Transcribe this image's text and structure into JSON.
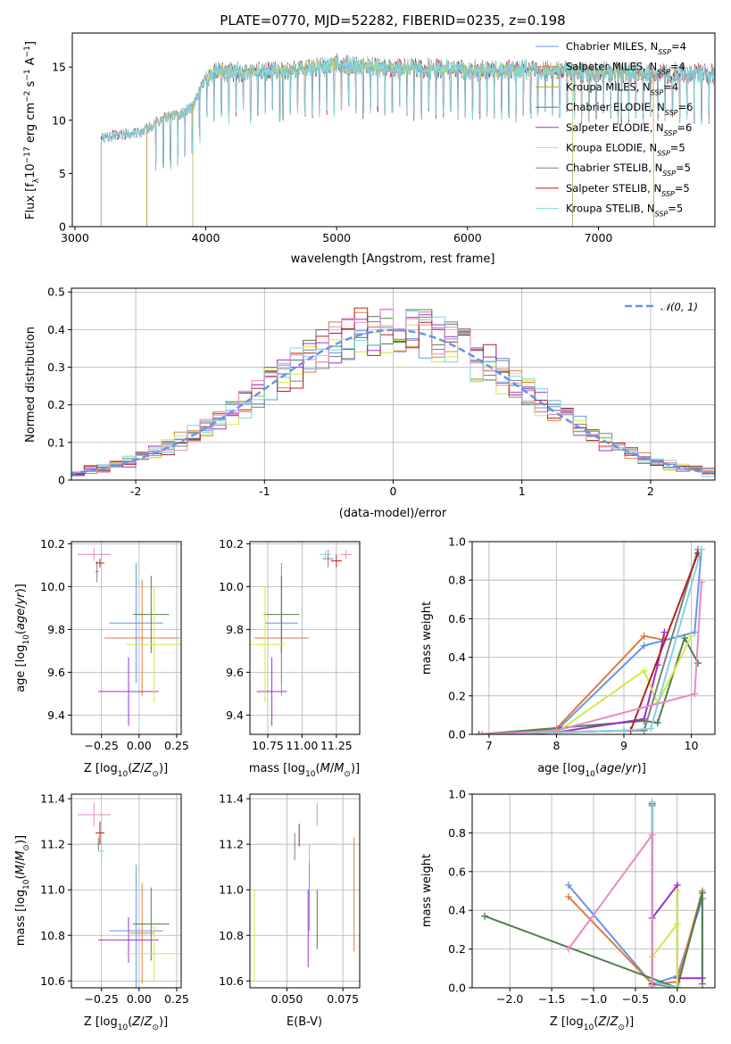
{
  "chart_data": [
    {
      "id": "spectrum",
      "type": "line",
      "title": "PLATE=0770, MJD=52282, FIBERID=0235, z=0.198",
      "xlabel": "wavelength [Angstrom, rest frame]",
      "ylabel": "Flux [f_λ 10^-17 erg cm^-2 s^-1 A^-1]",
      "xlim": [
        2980,
        7890
      ],
      "ylim": [
        0,
        18.2
      ],
      "xticks": [
        3000,
        4000,
        5000,
        6000,
        7000
      ],
      "yticks": [
        0,
        5,
        10,
        15
      ],
      "grid": false,
      "legend_position": "top-right",
      "continuum_x": [
        3200,
        3300,
        3400,
        3500,
        3600,
        3700,
        3800,
        3900,
        4000,
        4100,
        4300,
        4600,
        5000,
        5500,
        6000,
        6500,
        7000,
        7400,
        7800
      ],
      "continuum_y": [
        8.3,
        8.6,
        8.7,
        8.8,
        9.6,
        10.3,
        10.5,
        11.3,
        14.0,
        14.6,
        14.5,
        14.6,
        15.2,
        14.9,
        14.7,
        14.7,
        14.5,
        14.4,
        14.4
      ],
      "series": [
        {
          "name": "Chabrier MILES, N_SSP=4",
          "color": "#6495ed",
          "x_start": 3550,
          "x_end": 7420
        },
        {
          "name": "Salpeter MILES, N_SSP=4",
          "color": "#e07b39",
          "x_start": 3550,
          "x_end": 7420
        },
        {
          "name": "Kroupa MILES, N_SSP=4",
          "color": "#c9a227",
          "x_start": 3550,
          "x_end": 7420
        },
        {
          "name": "Chabrier ELODIE, N_SSP=6",
          "color": "#4f7f4f",
          "x_start": 3900,
          "x_end": 6800
        },
        {
          "name": "Salpeter ELODIE, N_SSP=6",
          "color": "#9932cc",
          "x_start": 3900,
          "x_end": 6800
        },
        {
          "name": "Kroupa ELODIE, N_SSP=5",
          "color": "#d4e84a",
          "x_start": 3900,
          "x_end": 6800
        },
        {
          "name": "Chabrier STELIB, N_SSP=5",
          "color": "#808080",
          "x_start": 3200,
          "x_end": 7890
        },
        {
          "name": "Salpeter STELIB, N_SSP=5",
          "color": "#b22222",
          "x_start": 3200,
          "x_end": 7890
        },
        {
          "name": "Kroupa STELIB, N_SSP=5",
          "color": "#7fd4e0",
          "x_start": 3200,
          "x_end": 7890
        }
      ]
    },
    {
      "id": "residuals",
      "type": "histogram",
      "xlabel": "(data-model)/error",
      "ylabel": "Normed distribution",
      "xlim": [
        -2.5,
        2.5
      ],
      "ylim": [
        0,
        0.51
      ],
      "xticks": [
        -2,
        -1,
        0,
        1,
        2
      ],
      "yticks": [
        0.0,
        0.1,
        0.2,
        0.3,
        0.4,
        0.5
      ],
      "grid": true,
      "legend_position": "top-right",
      "legend": "N(0,1)",
      "gaussian": {
        "mean": 0,
        "sigma": 1,
        "color": "#6495ed"
      },
      "bin_width": 0.1,
      "series_colors": [
        "#6495ed",
        "#e07b39",
        "#4f7f4f",
        "#9932cc",
        "#d4e84a",
        "#808080",
        "#b22222",
        "#7fd4e0",
        "#e78ac3"
      ]
    },
    {
      "id": "age-vs-z",
      "type": "errorbar",
      "xlabel": "Z [log10(Z/Z⊙)]",
      "ylabel": "age [log10(age/yr)]",
      "xlim": [
        -0.45,
        0.28
      ],
      "ylim": [
        9.31,
        10.21
      ],
      "xticks": [
        -0.25,
        0.0,
        0.25
      ],
      "xticklabels": [
        "−0.25",
        "0.00",
        "0.25"
      ],
      "yticks": [
        9.4,
        9.6,
        9.8,
        10.0,
        10.2
      ],
      "yticklabels": [
        "9.4",
        "9.6",
        "9.8",
        "10.0",
        "10.2"
      ],
      "grid": true,
      "points": [
        {
          "x": -0.02,
          "y": 9.83,
          "xerr": 0.18,
          "yerr": 0.28,
          "color": "#6495ed"
        },
        {
          "x": 0.02,
          "y": 9.76,
          "xerr": 0.25,
          "yerr": 0.27,
          "color": "#e07b39"
        },
        {
          "x": 0.08,
          "y": 9.87,
          "xerr": 0.12,
          "yerr": 0.18,
          "color": "#4f7f4f"
        },
        {
          "x": -0.07,
          "y": 9.51,
          "xerr": 0.2,
          "yerr": 0.16,
          "color": "#9932cc"
        },
        {
          "x": 0.1,
          "y": 9.73,
          "xerr": 0.19,
          "yerr": 0.27,
          "color": "#d4e84a"
        },
        {
          "x": -0.28,
          "y": 10.07,
          "xerr": 0.01,
          "yerr": 0.05,
          "color": "#808080"
        },
        {
          "x": -0.26,
          "y": 10.11,
          "xerr": 0.03,
          "yerr": 0.02,
          "color": "#b22222"
        },
        {
          "x": -0.25,
          "y": 10.15,
          "xerr": 0.02,
          "yerr": 0.02,
          "color": "#7fd4e0"
        },
        {
          "x": -0.3,
          "y": 10.15,
          "xerr": 0.11,
          "yerr": 0.03,
          "color": "#e78ac3"
        }
      ]
    },
    {
      "id": "age-vs-mass",
      "type": "errorbar",
      "xlabel": "mass [log10(M/M⊙)]",
      "xlim": [
        10.62,
        11.42
      ],
      "ylim": [
        9.31,
        10.21
      ],
      "xticks": [
        10.75,
        11.0,
        11.25
      ],
      "xticklabels": [
        "10.75",
        "11.00",
        "11.25"
      ],
      "yticks": [
        9.4,
        9.6,
        9.8,
        10.0,
        10.2
      ],
      "yticklabels": [
        "9.4",
        "9.6",
        "9.8",
        "10.0",
        "10.2"
      ],
      "grid": true,
      "points": [
        {
          "x": 10.85,
          "y": 9.83,
          "xerr": 0.12,
          "yerr": 0.28,
          "color": "#6495ed"
        },
        {
          "x": 10.85,
          "y": 9.76,
          "xerr": 0.2,
          "yerr": 0.27,
          "color": "#e07b39"
        },
        {
          "x": 10.85,
          "y": 9.87,
          "xerr": 0.13,
          "yerr": 0.18,
          "color": "#4f7f4f"
        },
        {
          "x": 10.78,
          "y": 9.51,
          "xerr": 0.11,
          "yerr": 0.16,
          "color": "#9932cc"
        },
        {
          "x": 10.73,
          "y": 9.73,
          "xerr": 0.15,
          "yerr": 0.27,
          "color": "#d4e84a"
        },
        {
          "x": 11.19,
          "y": 10.13,
          "xerr": 0.04,
          "yerr": 0.04,
          "color": "#808080"
        },
        {
          "x": 11.25,
          "y": 10.12,
          "xerr": 0.04,
          "yerr": 0.03,
          "color": "#b22222"
        },
        {
          "x": 11.17,
          "y": 10.15,
          "xerr": 0.04,
          "yerr": 0.02,
          "color": "#7fd4e0"
        },
        {
          "x": 11.32,
          "y": 10.15,
          "xerr": 0.04,
          "yerr": 0.02,
          "color": "#e78ac3"
        }
      ]
    },
    {
      "id": "mass-weight-vs-age",
      "type": "line",
      "xlabel": "age [log10(age/yr)]",
      "ylabel": "mass weight",
      "xlim": [
        6.75,
        10.35
      ],
      "ylim": [
        0,
        1.0
      ],
      "xticks": [
        7,
        8,
        9,
        10
      ],
      "yticks": [
        0.0,
        0.2,
        0.4,
        0.6,
        0.8,
        1.0
      ],
      "yticklabels": [
        "0.0",
        "0.2",
        "0.4",
        "0.6",
        "0.8",
        "1.0"
      ],
      "grid": true,
      "series": [
        {
          "color": "#6495ed",
          "x": [
            6.85,
            8.0,
            9.3,
            10.05,
            10.15
          ],
          "y": [
            0.0,
            0.02,
            0.46,
            0.53,
            0.96
          ]
        },
        {
          "color": "#e07b39",
          "x": [
            6.9,
            8.0,
            9.3,
            9.6
          ],
          "y": [
            0.0,
            0.03,
            0.51,
            0.49
          ]
        },
        {
          "color": "#4f7f4f",
          "x": [
            6.85,
            9.3,
            9.5,
            9.9,
            10.1
          ],
          "y": [
            0.0,
            0.07,
            0.06,
            0.5,
            0.37
          ]
        },
        {
          "color": "#9932cc",
          "x": [
            6.9,
            8.0,
            9.3,
            9.5,
            9.6
          ],
          "y": [
            0.0,
            0.01,
            0.08,
            0.36,
            0.53
          ]
        },
        {
          "color": "#d4e84a",
          "x": [
            6.9,
            8.0,
            9.3,
            9.5,
            10.0
          ],
          "y": [
            0.0,
            0.01,
            0.33,
            0.16,
            0.51
          ]
        },
        {
          "color": "#808080",
          "x": [
            6.9,
            9.0,
            9.3,
            10.1
          ],
          "y": [
            0.0,
            0.02,
            0.02,
            0.96
          ]
        },
        {
          "color": "#b22222",
          "x": [
            6.9,
            9.1,
            10.1
          ],
          "y": [
            0.0,
            0.02,
            0.94
          ]
        },
        {
          "color": "#7fd4e0",
          "x": [
            6.9,
            9.0,
            9.4,
            10.15
          ],
          "y": [
            0.0,
            0.02,
            0.03,
            0.96
          ]
        },
        {
          "color": "#e78ac3",
          "x": [
            6.9,
            8.0,
            10.05,
            10.15
          ],
          "y": [
            0.0,
            0.02,
            0.21,
            0.79
          ]
        }
      ]
    },
    {
      "id": "mass-vs-z",
      "type": "errorbar",
      "xlabel": "Z [log10(Z/Z⊙)]",
      "ylabel": "mass [log10(M/M⊙)]",
      "xlim": [
        -0.45,
        0.28
      ],
      "ylim": [
        10.57,
        11.42
      ],
      "xticks": [
        -0.25,
        0.0,
        0.25
      ],
      "xticklabels": [
        "−0.25",
        "0.00",
        "0.25"
      ],
      "yticks": [
        10.6,
        10.8,
        11.0,
        11.2,
        11.4
      ],
      "yticklabels": [
        "10.6",
        "10.8",
        "11.0",
        "11.2",
        "11.4"
      ],
      "grid": true,
      "points": [
        {
          "x": -0.02,
          "y": 10.82,
          "xerr": 0.18,
          "yerr": 0.29,
          "color": "#6495ed"
        },
        {
          "x": 0.02,
          "y": 10.81,
          "xerr": 0.08,
          "yerr": 0.22,
          "color": "#e07b39"
        },
        {
          "x": 0.08,
          "y": 10.85,
          "xerr": 0.12,
          "yerr": 0.16,
          "color": "#4f7f4f"
        },
        {
          "x": -0.07,
          "y": 10.78,
          "xerr": 0.2,
          "yerr": 0.1,
          "color": "#9932cc"
        },
        {
          "x": 0.1,
          "y": 10.72,
          "xerr": 0.19,
          "yerr": 0.12,
          "color": "#d4e84a"
        },
        {
          "x": -0.27,
          "y": 11.2,
          "xerr": 0.01,
          "yerr": 0.03,
          "color": "#808080"
        },
        {
          "x": -0.26,
          "y": 11.25,
          "xerr": 0.03,
          "yerr": 0.05,
          "color": "#b22222"
        },
        {
          "x": -0.25,
          "y": 11.17,
          "xerr": 0.02,
          "yerr": 0.04,
          "color": "#7fd4e0"
        },
        {
          "x": -0.3,
          "y": 11.33,
          "xerr": 0.11,
          "yerr": 0.05,
          "color": "#e78ac3"
        }
      ]
    },
    {
      "id": "mass-vs-ebv",
      "type": "errorbar",
      "xlabel": "E(B-V)",
      "xlim": [
        0.0335,
        0.0825
      ],
      "ylim": [
        10.57,
        11.42
      ],
      "xticks": [
        0.05,
        0.075
      ],
      "xticklabels": [
        "0.050",
        "0.075"
      ],
      "yticks": [
        10.6,
        10.8,
        11.0,
        11.2,
        11.4
      ],
      "yticklabels": [
        "10.6",
        "10.8",
        "11.0",
        "11.2",
        "11.4"
      ],
      "grid": true,
      "points": [
        {
          "x": 0.06,
          "y": 10.97,
          "xerr": 0,
          "yerr": 0.15,
          "color": "#6495ed"
        },
        {
          "x": 0.08,
          "y": 10.98,
          "xerr": 0,
          "yerr": 0.25,
          "color": "#e07b39"
        },
        {
          "x": 0.0635,
          "y": 10.87,
          "xerr": 0,
          "yerr": 0.13,
          "color": "#4f7f4f"
        },
        {
          "x": 0.0595,
          "y": 10.83,
          "xerr": 0,
          "yerr": 0.17,
          "color": "#9932cc"
        },
        {
          "x": 0.0355,
          "y": 10.8,
          "xerr": 0,
          "yerr": 0.2,
          "color": "#d4e84a"
        },
        {
          "x": 0.0535,
          "y": 11.19,
          "xerr": 0,
          "yerr": 0.06,
          "color": "#808080"
        },
        {
          "x": 0.0555,
          "y": 11.24,
          "xerr": 0,
          "yerr": 0.05,
          "color": "#b22222"
        },
        {
          "x": 0.06,
          "y": 11.16,
          "xerr": 0,
          "yerr": 0.04,
          "color": "#7fd4e0"
        },
        {
          "x": 0.0635,
          "y": 11.33,
          "xerr": 0,
          "yerr": 0.05,
          "color": "#e78ac3"
        }
      ]
    },
    {
      "id": "mass-weight-vs-z",
      "type": "line",
      "xlabel": "Z [log10(Z/Z⊙)]",
      "ylabel": "mass weight",
      "xlim": [
        -2.45,
        0.45
      ],
      "ylim": [
        0,
        1.0
      ],
      "xticks": [
        -2.0,
        -1.5,
        -1.0,
        -0.5,
        0.0
      ],
      "xticklabels": [
        "−2.0",
        "−1.5",
        "−1.0",
        "−0.5",
        "0.0"
      ],
      "yticks": [
        0.0,
        0.2,
        0.4,
        0.6,
        0.8,
        1.0
      ],
      "yticklabels": [
        "0.0",
        "0.2",
        "0.4",
        "0.6",
        "0.8",
        "1.0"
      ],
      "grid": true,
      "series": [
        {
          "color": "#6495ed",
          "x": [
            -1.3,
            -0.3,
            0.0,
            0.3,
            0.3
          ],
          "y": [
            0.53,
            0.02,
            0.06,
            0.46,
            0.05
          ]
        },
        {
          "color": "#e07b39",
          "x": [
            -1.3,
            -0.3,
            0.0,
            0.3
          ],
          "y": [
            0.47,
            0.02,
            0.03,
            0.5
          ]
        },
        {
          "color": "#4f7f4f",
          "x": [
            -2.3,
            0.0,
            0.3,
            0.3
          ],
          "y": [
            0.37,
            0.0,
            0.49,
            0.02
          ]
        },
        {
          "color": "#9932cc",
          "x": [
            -0.3,
            0.0,
            0.0,
            0.3
          ],
          "y": [
            0.36,
            0.53,
            0.05,
            0.05
          ]
        },
        {
          "color": "#d4e84a",
          "x": [
            -0.3,
            0.0,
            0.0,
            0.0
          ],
          "y": [
            0.16,
            0.33,
            0.5,
            0.01
          ]
        },
        {
          "color": "#808080",
          "x": [
            -0.3,
            -0.3,
            0.0
          ],
          "y": [
            0.94,
            0.02,
            0.0
          ]
        },
        {
          "color": "#b22222",
          "x": [
            -0.3,
            -0.3
          ],
          "y": [
            0.95,
            0.02
          ]
        },
        {
          "color": "#7fd4e0",
          "x": [
            -0.3,
            -0.3,
            0.0
          ],
          "y": [
            0.96,
            0.03,
            0.0
          ]
        },
        {
          "color": "#e78ac3",
          "x": [
            -1.3,
            -0.3,
            -0.3
          ],
          "y": [
            0.2,
            0.79,
            0.01
          ]
        }
      ]
    }
  ]
}
